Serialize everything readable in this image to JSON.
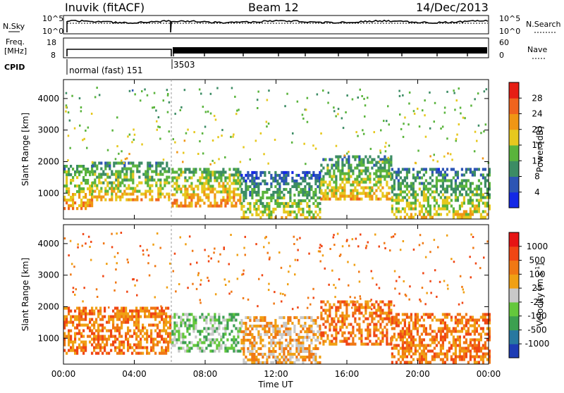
{
  "header": {
    "station": "Inuvik (fitACF)",
    "beam": "Beam 12",
    "date": "14/Dec/2013"
  },
  "top_panels": {
    "nsky_label": "N.Sky",
    "nsky_ticks": [
      "10^5",
      "10^0"
    ],
    "nsearch_label": "N.Search",
    "nsearch_ticks": [
      "10^5",
      "10^0"
    ],
    "freq_label_line1": "Freq.",
    "freq_label_line2": "[MHz]",
    "freq_ticks": [
      "18",
      "8"
    ],
    "nave_label": "Nave",
    "nave_ticks": [
      "60",
      "0"
    ],
    "cpid_label": "CPID",
    "cpid_segments": [
      {
        "text": "normal (fast) 151",
        "start_hour": 0,
        "end_hour": 6.1
      },
      {
        "text": "3503",
        "start_hour": 6.1,
        "end_hour": 24
      }
    ]
  },
  "x_axis": {
    "label": "Time UT",
    "ticks": [
      "00:00",
      "04:00",
      "08:00",
      "12:00",
      "16:00",
      "20:00",
      "00:00"
    ]
  },
  "power_panel": {
    "ylabel": "Slant Range [km]",
    "yticks": [
      "1000",
      "2000",
      "3000",
      "4000"
    ],
    "colorbar_label": "Power [dB]",
    "colorbar_ticks": [
      "4",
      "8",
      "12",
      "16",
      "20",
      "24",
      "28"
    ],
    "colors": [
      "#1428e6",
      "#2d55b4",
      "#3c8c64",
      "#5ab43c",
      "#e6c81e",
      "#f09614",
      "#f0641e",
      "#e61e14"
    ]
  },
  "velocity_panel": {
    "ylabel": "Slant Range [km]",
    "yticks": [
      "1000",
      "2000",
      "3000",
      "4000"
    ],
    "colorbar_label": "Velocity [m s",
    "colorbar_label_sup": "-1",
    "colorbar_label_end": "]",
    "colorbar_ticks": [
      "1000",
      "500",
      "100",
      "25",
      "-25",
      "-100",
      "-500",
      "-1000"
    ],
    "colors": [
      "#1e3cb4",
      "#2878a0",
      "#3ca050",
      "#64c83c",
      "#c8c8c8",
      "#f0a014",
      "#f07814",
      "#f04614",
      "#e61414"
    ]
  },
  "chart_data": [
    {
      "type": "heatmap",
      "title": "Power",
      "xlabel": "Time UT",
      "ylabel": "Slant Range [km]",
      "xlim": [
        0,
        24
      ],
      "ylim": [
        180,
        4600
      ],
      "colorbar": "Power [dB]",
      "clim": [
        0,
        32
      ],
      "regions": [
        {
          "x0": 0.0,
          "x1": 1.6,
          "y0": 500,
          "y1": 1900,
          "level": 24
        },
        {
          "x0": 1.6,
          "x1": 6.0,
          "y0": 800,
          "y1": 2000,
          "level": 22
        },
        {
          "x0": 6.1,
          "x1": 10.0,
          "y0": 600,
          "y1": 1800,
          "level": 25
        },
        {
          "x0": 10.0,
          "x1": 14.5,
          "y0": 250,
          "y1": 1700,
          "level": 18
        },
        {
          "x0": 14.5,
          "x1": 18.5,
          "y0": 800,
          "y1": 2200,
          "level": 22
        },
        {
          "x0": 18.5,
          "x1": 24.0,
          "y0": 250,
          "y1": 1800,
          "level": 20
        }
      ]
    },
    {
      "type": "heatmap",
      "title": "Velocity",
      "xlabel": "Time UT",
      "ylabel": "Slant Range [km]",
      "xlim": [
        0,
        24
      ],
      "ylim": [
        180,
        4600
      ],
      "colorbar": "Velocity [m s-1]",
      "clim": [
        -1000,
        1000
      ],
      "regions": [
        {
          "x0": 0.0,
          "x1": 6.0,
          "y0": 500,
          "y1": 2000,
          "value": -150
        },
        {
          "x0": 6.1,
          "x1": 10.0,
          "y0": 600,
          "y1": 1800,
          "value": 80
        },
        {
          "x0": 10.0,
          "x1": 14.5,
          "y0": 250,
          "y1": 1700,
          "value": -60
        },
        {
          "x0": 14.5,
          "x1": 18.5,
          "y0": 800,
          "y1": 2200,
          "value": -200
        },
        {
          "x0": 18.5,
          "x1": 24.0,
          "y0": 250,
          "y1": 1800,
          "value": -120
        }
      ]
    }
  ]
}
